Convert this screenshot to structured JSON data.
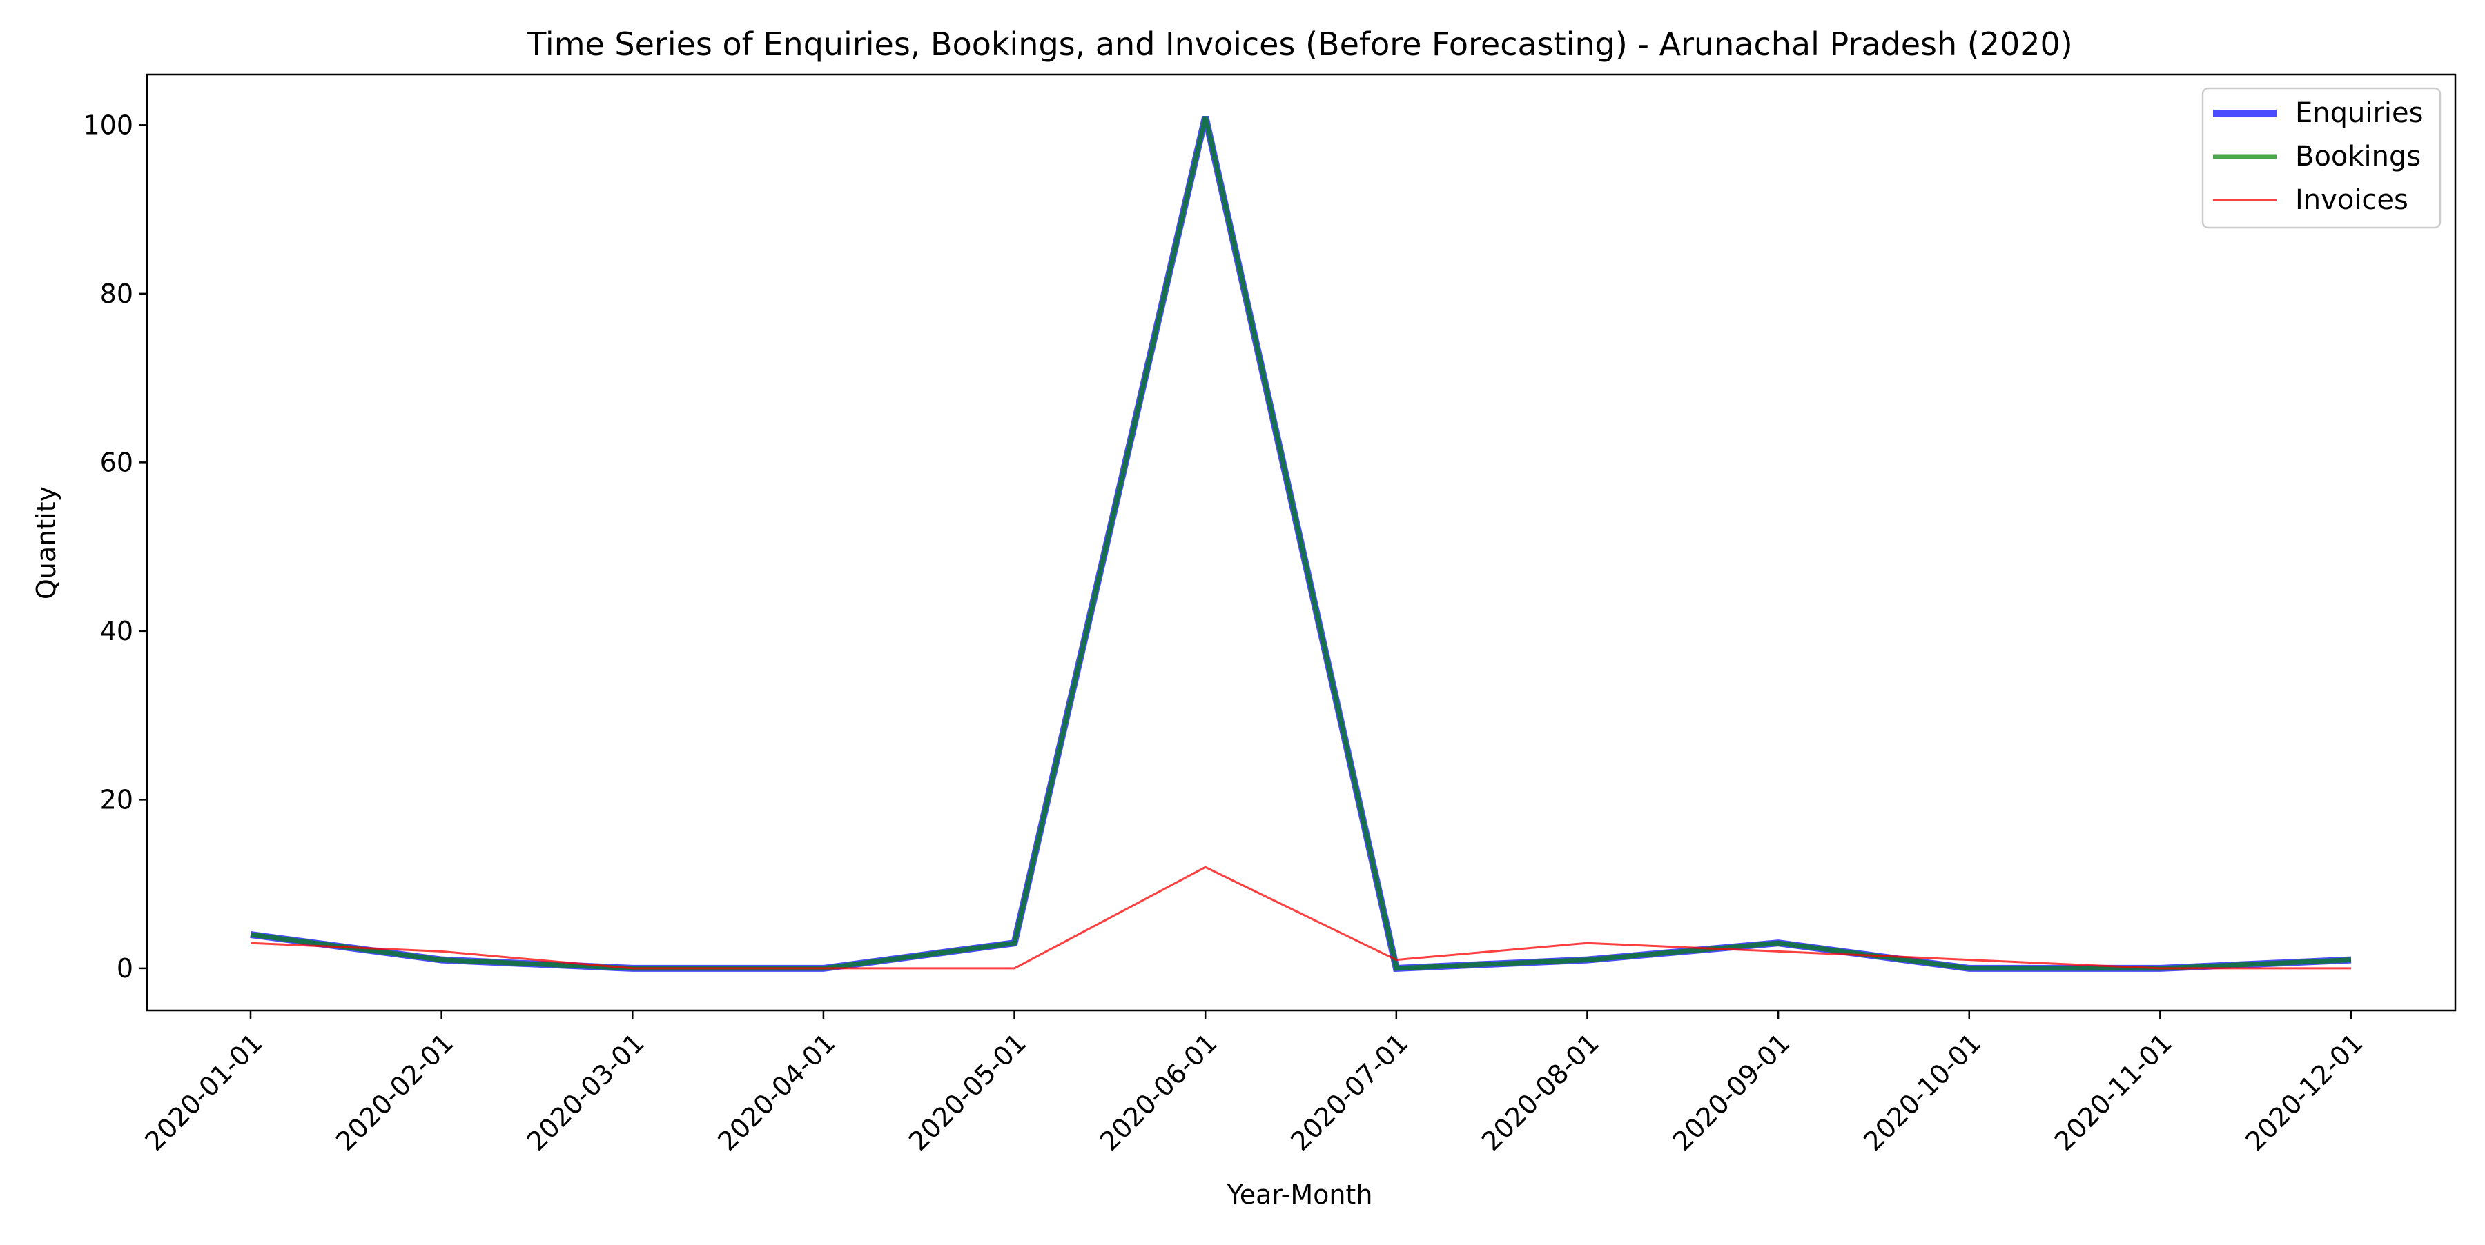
{
  "chart_data": {
    "type": "line",
    "title": "Time Series of Enquiries, Bookings, and Invoices (Before Forecasting) - Arunachal Pradesh (2020)",
    "xlabel": "Year-Month",
    "ylabel": "Quantity",
    "x": [
      "2020-01-01",
      "2020-02-01",
      "2020-03-01",
      "2020-04-01",
      "2020-05-01",
      "2020-06-01",
      "2020-07-01",
      "2020-08-01",
      "2020-09-01",
      "2020-10-01",
      "2020-11-01",
      "2020-12-01"
    ],
    "ylim": [
      -5,
      106
    ],
    "yticks": [
      0,
      20,
      40,
      60,
      80,
      100
    ],
    "grid": false,
    "legend_position": "top-right",
    "series": [
      {
        "name": "Enquiries",
        "color": "#0000ff",
        "opacity": 0.7,
        "line_weight": "thick",
        "values": [
          4,
          1,
          0,
          0,
          3,
          101,
          0,
          1,
          3,
          0,
          0,
          1
        ]
      },
      {
        "name": "Bookings",
        "color": "#008000",
        "opacity": 0.7,
        "line_weight": "medium",
        "values": [
          4,
          1,
          0,
          0,
          3,
          101,
          0,
          1,
          3,
          0,
          0,
          1
        ]
      },
      {
        "name": "Invoices",
        "color": "#ff0000",
        "opacity": 0.75,
        "line_weight": "thin",
        "values": [
          3,
          2,
          0,
          0,
          0,
          12,
          1,
          3,
          2,
          1,
          0,
          0
        ]
      }
    ]
  }
}
